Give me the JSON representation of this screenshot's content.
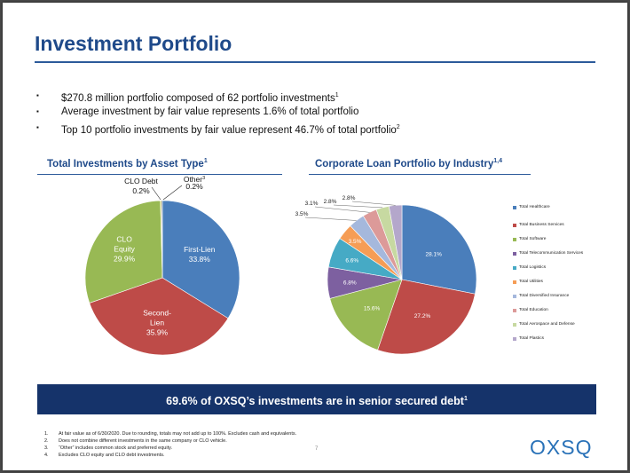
{
  "title": "Investment Portfolio",
  "bullets": [
    {
      "text": "$270.8 million portfolio composed of 62 portfolio investments",
      "sup": "1"
    },
    {
      "text": "Average investment by fair value represents 1.6% of total portfolio",
      "sup": ""
    },
    {
      "text": "Top 10 portfolio investments by fair value represent 46.7% of total portfolio",
      "sup": "2"
    }
  ],
  "bullet_mark": "▪",
  "chart_data": [
    {
      "type": "pie",
      "title": "Total Investments by Asset Type",
      "title_sup": "1",
      "slices": [
        {
          "label": [
            "First-Lien",
            "33.8%"
          ],
          "value": 33.8,
          "color": "#4a7ebb",
          "text_color": "#ffffff"
        },
        {
          "label": [
            "Second-",
            "Lien",
            "35.9%"
          ],
          "value": 35.9,
          "color": "#be4b48",
          "text_color": "#ffffff"
        },
        {
          "label": [
            "CLO",
            "Equity",
            "29.9%"
          ],
          "value": 29.9,
          "color": "#98b954",
          "text_color": "#ffffff"
        },
        {
          "label": [
            "CLO Debt",
            "0.2%"
          ],
          "value": 0.2,
          "color": "#f2c500",
          "text_color": "#111111"
        },
        {
          "label": [
            "Other",
            "0.2%"
          ],
          "label_sup": "3",
          "value": 0.2,
          "color": "#2c4d75",
          "text_color": "#111111"
        }
      ]
    },
    {
      "type": "pie",
      "title": "Corporate Loan Portfolio by Industry",
      "title_sup": "1,4",
      "slices": [
        {
          "label": "28.1%",
          "value": 28.1,
          "color": "#4a7ebb"
        },
        {
          "label": "27.2%",
          "value": 27.2,
          "color": "#be4b48"
        },
        {
          "label": "15.6%",
          "value": 15.6,
          "color": "#98b954"
        },
        {
          "label": "6.8%",
          "value": 6.8,
          "color": "#7d60a0"
        },
        {
          "label": "6.6%",
          "value": 6.6,
          "color": "#46aac5"
        },
        {
          "label": "3.5%",
          "value": 3.5,
          "color": "#f59d56"
        },
        {
          "label": "3.5%",
          "value": 3.5,
          "color": "#a5b8dc"
        },
        {
          "label": "3.1%",
          "value": 3.1,
          "color": "#dc9a99"
        },
        {
          "label": "2.8%",
          "value": 2.8,
          "color": "#c7d9a1"
        },
        {
          "label": "2.8%",
          "value": 2.8,
          "color": "#b4a7cb"
        }
      ],
      "legend": [
        {
          "label": "Total Healthcare",
          "color": "#4a7ebb"
        },
        {
          "label": "Total Business Services",
          "color": "#be4b48"
        },
        {
          "label": "Total Software",
          "color": "#98b954"
        },
        {
          "label": "Total Telecommunication Services",
          "color": "#7d60a0"
        },
        {
          "label": "Total Logistics",
          "color": "#46aac5"
        },
        {
          "label": "Total Utilities",
          "color": "#f59d56"
        },
        {
          "label": "Total Diversified Insurance",
          "color": "#a5b8dc"
        },
        {
          "label": "Total Education",
          "color": "#dc9a99"
        },
        {
          "label": "Total Aerospace and Defense",
          "color": "#c7d9a1"
        },
        {
          "label": "Total Plastics",
          "color": "#b4a7cb"
        }
      ]
    }
  ],
  "banner": {
    "text": "69.6% of OXSQ’s investments are in senior secured debt",
    "sup": "1"
  },
  "footnotes": [
    {
      "num": "1.",
      "text": "At fair value as of 6/30/2020.  Due to rounding, totals may not add up to 100%.  Excludes cash and equivalents."
    },
    {
      "num": "2.",
      "text": "Does not combine different investments in the same company or CLO vehicle."
    },
    {
      "num": "3.",
      "text": "“Other” includes common stock and preferred equity."
    },
    {
      "num": "4.",
      "text": "Excludes CLO equity and CLO debt investments."
    }
  ],
  "page_number": "7",
  "logo": "OXSQ",
  "colors": {
    "title": "#1f4a8a",
    "banner": "#15336a",
    "logo": "#2a72b8"
  }
}
